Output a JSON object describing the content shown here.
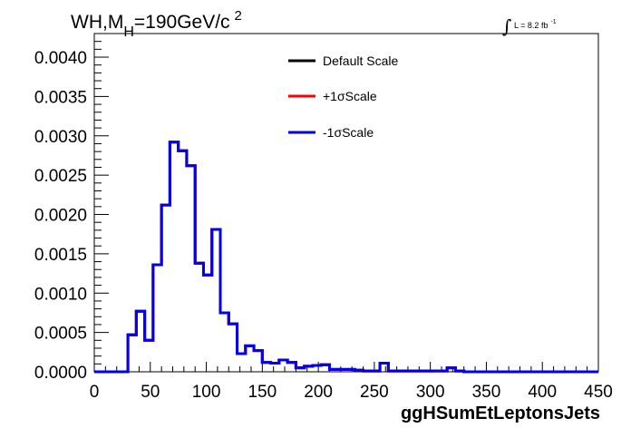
{
  "chart_data": {
    "type": "line",
    "title": {
      "prefix": "WH,M",
      "sub": "H",
      "mid": "=190GeV/c",
      "sup": "2"
    },
    "lumi": {
      "integral": "∫",
      "text": "L = 8.2 fb",
      "sup": "-1"
    },
    "xlabel": "ggHSumEtLeptonsJets",
    "ylabel": "",
    "xlim": [
      0,
      450
    ],
    "ylim": [
      0,
      0.0043
    ],
    "x_ticks": [
      "0",
      "50",
      "100",
      "150",
      "200",
      "250",
      "300",
      "350",
      "400",
      "450"
    ],
    "x_tick_values": [
      0,
      50,
      100,
      150,
      200,
      250,
      300,
      350,
      400,
      450
    ],
    "y_ticks": [
      "0.0000",
      "0.0005",
      "0.0010",
      "0.0015",
      "0.0020",
      "0.0025",
      "0.0030",
      "0.0035",
      "0.0040"
    ],
    "y_tick_values": [
      0,
      0.0005,
      0.001,
      0.0015,
      0.002,
      0.0025,
      0.003,
      0.0035,
      0.004
    ],
    "bin_width": 7.5,
    "bin_low_edges": [
      0,
      7.5,
      15,
      22.5,
      30,
      37.5,
      45,
      52.5,
      60,
      67.5,
      75,
      82.5,
      90,
      97.5,
      105,
      112.5,
      120,
      127.5,
      135,
      142.5,
      150,
      157.5,
      165,
      172.5,
      180,
      187.5,
      195,
      202.5,
      210,
      217.5,
      225,
      232.5,
      240,
      247.5,
      255,
      262.5,
      270,
      277.5,
      285,
      292.5,
      300,
      307.5,
      315,
      322.5,
      330,
      337.5,
      345,
      352.5,
      360,
      367.5,
      375,
      382.5,
      390,
      397.5,
      405,
      412.5,
      420,
      427.5,
      435,
      442.5
    ],
    "legend_position": "top-center",
    "series": [
      {
        "name": "Default Scale",
        "color": "#000000",
        "values": [
          0,
          0,
          0,
          0,
          0.00047,
          0.00077,
          0.0004,
          0.00136,
          0.00212,
          0.00292,
          0.00281,
          0.00262,
          0.00138,
          0.00123,
          0.00181,
          0.00075,
          0.00061,
          0.00023,
          0.00033,
          0.00027,
          0.00012,
          0.00011,
          0.00015,
          0.00012,
          5e-05,
          7e-05,
          8e-05,
          9e-05,
          3e-05,
          3e-05,
          3e-05,
          2e-05,
          1e-05,
          1e-05,
          0.00011,
          1e-05,
          1e-05,
          1e-05,
          1e-05,
          1e-05,
          1e-05,
          1e-05,
          5e-05,
          1e-05,
          0,
          0,
          0,
          0,
          0,
          0,
          0,
          0,
          0,
          0,
          0,
          0,
          0,
          0,
          0,
          0
        ]
      },
      {
        "name": "+1σScale",
        "color": "#ff0000",
        "values": [
          0,
          0,
          0,
          0,
          0.00047,
          0.00077,
          0.0004,
          0.00136,
          0.00212,
          0.00292,
          0.00281,
          0.00262,
          0.00138,
          0.00123,
          0.00181,
          0.00075,
          0.00061,
          0.00023,
          0.00033,
          0.00027,
          0.00012,
          0.00011,
          0.00015,
          0.00012,
          5e-05,
          7e-05,
          8e-05,
          9e-05,
          3e-05,
          3e-05,
          3e-05,
          2e-05,
          1e-05,
          1e-05,
          0.00011,
          1e-05,
          1e-05,
          1e-05,
          1e-05,
          1e-05,
          1e-05,
          1e-05,
          5e-05,
          1e-05,
          0,
          0,
          0,
          0,
          0,
          0,
          0,
          0,
          0,
          0,
          0,
          0,
          0,
          0,
          0,
          0
        ]
      },
      {
        "name": "-1σScale",
        "color": "#0000ee",
        "values": [
          0,
          0,
          0,
          0,
          0.00047,
          0.00077,
          0.0004,
          0.00136,
          0.00212,
          0.00292,
          0.00281,
          0.00262,
          0.00138,
          0.00123,
          0.00181,
          0.00075,
          0.00061,
          0.00023,
          0.00033,
          0.00027,
          0.00012,
          0.00011,
          0.00015,
          0.00012,
          5e-05,
          7e-05,
          8e-05,
          9e-05,
          3e-05,
          3e-05,
          3e-05,
          2e-05,
          1e-05,
          1e-05,
          0.00011,
          1e-05,
          1e-05,
          1e-05,
          1e-05,
          1e-05,
          1e-05,
          1e-05,
          5e-05,
          1e-05,
          0,
          0,
          0,
          0,
          0,
          0,
          0,
          0,
          0,
          0,
          0,
          0,
          0,
          0,
          0,
          0
        ]
      }
    ]
  }
}
